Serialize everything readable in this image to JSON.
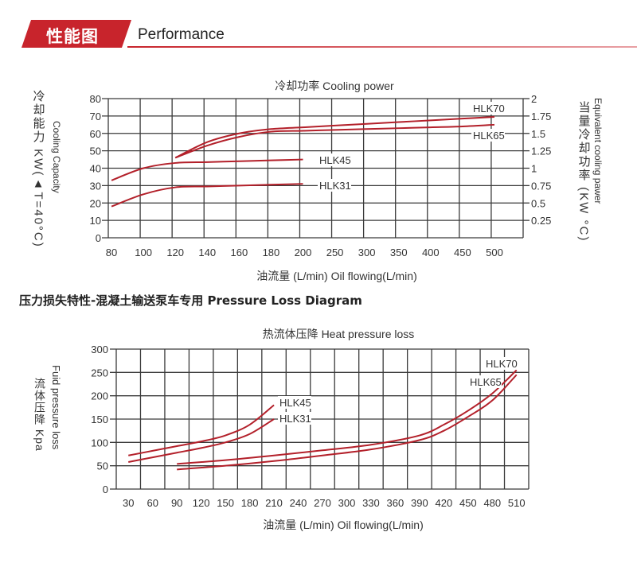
{
  "header": {
    "title_cn": "性能图",
    "title_en": "Performance",
    "accent_color": "#c8242c"
  },
  "section2_heading": "压力损失特性-混凝土输送泵车专用 Pressure Loss Diagram",
  "chart_data": [
    {
      "type": "line",
      "title": "冷却功率  Cooling power",
      "xlabel": "油流量 (L/min) Oil flowing(L/min)",
      "ylabel": "冷却能力 KW(▲T=40°C) Cooling Capacity",
      "ylabel_cn": "冷却能力 KW(▲T=40°C)",
      "ylabel_en": "Cooling Capacity",
      "y2label_cn": "当量冷却功率 (KW °C)",
      "y2label_en": "Equivalent cooling pawer",
      "categories": [
        "80",
        "100",
        "120",
        "140",
        "160",
        "180",
        "200",
        "250",
        "300",
        "350",
        "400",
        "450",
        "500"
      ],
      "yticks": [
        "0",
        "10",
        "20",
        "30",
        "40",
        "50",
        "60",
        "70",
        "80"
      ],
      "y2ticks": [
        "",
        "0.25",
        "0.5",
        "0.75",
        "1",
        "1.25",
        "1.5",
        "1.75",
        "2"
      ],
      "ylim": [
        0,
        80
      ],
      "y2lim": [
        0,
        2
      ],
      "grid": true,
      "line_color": "#b3202a",
      "series": [
        {
          "name": "HLK31",
          "x": [
            "80",
            "100",
            "120",
            "140",
            "160",
            "180",
            "200"
          ],
          "values": [
            18,
            25,
            29,
            29.5,
            30,
            30.5,
            31
          ]
        },
        {
          "name": "HLK45",
          "x": [
            "80",
            "100",
            "120",
            "140",
            "160",
            "180",
            "200"
          ],
          "values": [
            33,
            40,
            43,
            43.5,
            44,
            44.5,
            45
          ]
        },
        {
          "name": "HLK65",
          "x": [
            "120",
            "140",
            "160",
            "180",
            "200",
            "250",
            "300",
            "350",
            "400",
            "450",
            "500"
          ],
          "values": [
            46,
            53,
            58,
            61,
            61.5,
            62,
            62.5,
            63,
            63.5,
            64,
            65
          ]
        },
        {
          "name": "HLK70",
          "x": [
            "120",
            "140",
            "160",
            "180",
            "200",
            "250",
            "300",
            "350",
            "400",
            "450",
            "500"
          ],
          "values": [
            46,
            55,
            60,
            62.5,
            63.5,
            64.5,
            65.5,
            66.5,
            67.5,
            68.5,
            69.5
          ]
        }
      ]
    },
    {
      "type": "line",
      "title": "热流体压降 Heat pressure loss",
      "xlabel": "油流量 (L/min) Oil flowing(L/min)",
      "ylabel_en": "Fuid pressure loss",
      "ylabel_cn": "流体压降 Kpa",
      "categories": [
        "30",
        "60",
        "90",
        "120",
        "150",
        "180",
        "210",
        "240",
        "270",
        "300",
        "330",
        "360",
        "390",
        "420",
        "450",
        "480",
        "510"
      ],
      "yticks": [
        "0",
        "50",
        "100",
        "150",
        "200",
        "250",
        "300"
      ],
      "ylim": [
        0,
        300
      ],
      "grid": true,
      "line_color": "#b3202a",
      "series": [
        {
          "name": "HLK31",
          "x": [
            30,
            60,
            90,
            120,
            150,
            180,
            210
          ],
          "values": [
            58,
            68,
            78,
            88,
            100,
            118,
            150
          ]
        },
        {
          "name": "HLK45",
          "x": [
            30,
            60,
            90,
            120,
            150,
            180,
            210
          ],
          "values": [
            72,
            82,
            92,
            102,
            115,
            138,
            180
          ]
        },
        {
          "name": "HLK65",
          "x": [
            90,
            150,
            210,
            270,
            330,
            390,
            420,
            450,
            480,
            510
          ],
          "values": [
            42,
            50,
            60,
            72,
            85,
            105,
            125,
            155,
            190,
            245
          ]
        },
        {
          "name": "HLK70",
          "x": [
            90,
            150,
            210,
            270,
            330,
            390,
            420,
            450,
            480,
            510
          ],
          "values": [
            54,
            62,
            72,
            83,
            95,
            115,
            138,
            168,
            205,
            255
          ]
        }
      ]
    }
  ]
}
